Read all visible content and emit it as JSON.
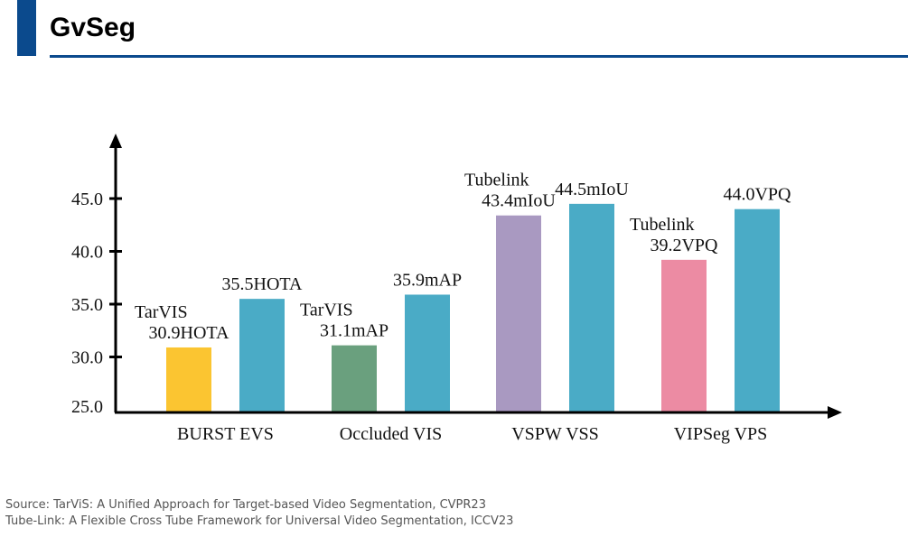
{
  "header": {
    "title": "GvSeg",
    "accent_color": "#0b4a8d"
  },
  "chart_data": {
    "type": "bar",
    "title": "",
    "xlabel": "",
    "ylabel": "",
    "ylim": [
      25.0,
      49.0
    ],
    "yticks": [
      25.0,
      30.0,
      35.0,
      40.0,
      45.0
    ],
    "ytick_labels": [
      "25.0",
      "30.0",
      "35.0",
      "40.0",
      "45.0"
    ],
    "grid": false,
    "legend": "none",
    "categories": [
      "BURST EVS",
      "Occluded VIS",
      "VSPW VSS",
      "VIPSeg VPS"
    ],
    "bars": [
      {
        "category": "BURST EVS",
        "method": "TarVIS",
        "value": 30.9,
        "label_lines": [
          "TarVIS",
          "30.9HOTA"
        ],
        "color": "#fbc531"
      },
      {
        "category": "BURST EVS",
        "method": "GvSeg",
        "value": 35.5,
        "label_lines": [
          "35.5HOTA"
        ],
        "color": "#4aabc6"
      },
      {
        "category": "Occluded VIS",
        "method": "TarVIS",
        "value": 31.1,
        "label_lines": [
          "TarVIS",
          "31.1mAP"
        ],
        "color": "#6aa07e"
      },
      {
        "category": "Occluded VIS",
        "method": "GvSeg",
        "value": 35.9,
        "label_lines": [
          "35.9mAP"
        ],
        "color": "#4aabc6"
      },
      {
        "category": "VSPW VSS",
        "method": "Tubelink",
        "value": 43.4,
        "label_lines": [
          "Tubelink",
          "43.4mIoU"
        ],
        "color": "#a999c1"
      },
      {
        "category": "VSPW VSS",
        "method": "GvSeg",
        "value": 44.5,
        "label_lines": [
          "44.5mIoU"
        ],
        "color": "#4aabc6"
      },
      {
        "category": "VIPSeg VPS",
        "method": "Tubelink",
        "value": 39.2,
        "label_lines": [
          "Tubelink",
          "39.2VPQ"
        ],
        "color": "#ec8ba3"
      },
      {
        "category": "VIPSeg VPS",
        "method": "GvSeg",
        "value": 44.0,
        "label_lines": [
          "44.0VPQ"
        ],
        "color": "#4aabc6"
      }
    ]
  },
  "footer": {
    "source_lines": [
      "Source: TarViS: A Unified Approach for Target-based Video Segmentation, CVPR23",
      "Tube-Link: A Flexible Cross Tube Framework for Universal Video Segmentation, ICCV23"
    ]
  }
}
